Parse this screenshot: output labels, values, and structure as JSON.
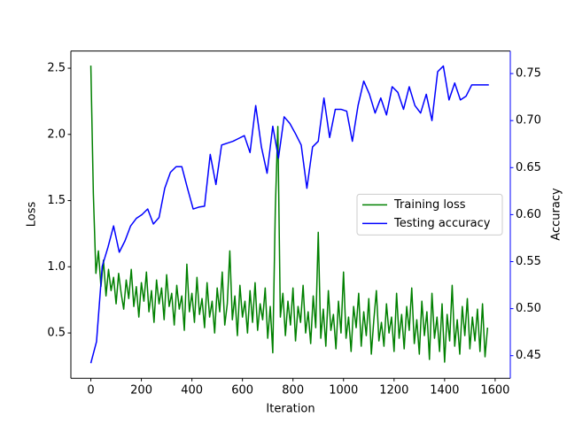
{
  "chart_data": {
    "type": "line",
    "xlabel": "Iteration",
    "ylabel": "Loss",
    "y2label": "Accuracy",
    "xlim": [
      -79,
      1660
    ],
    "xticks": [
      0,
      200,
      400,
      600,
      800,
      1000,
      1200,
      1400,
      1600
    ],
    "ylim": [
      0.158,
      2.63
    ],
    "yticks": [
      0.5,
      {
        "value": 1.0,
        "label": "1.0"
      },
      1.5,
      {
        "value": 2.0,
        "label": "2.0"
      },
      2.5
    ],
    "y2lim": [
      0.426,
      0.774
    ],
    "y2ticks": [
      0.45,
      {
        "value": 0.5,
        "label": "0.50"
      },
      0.55,
      {
        "value": 0.6,
        "label": "0.60"
      },
      0.65,
      {
        "value": 0.7,
        "label": "0.70"
      },
      0.75
    ],
    "y2_color": "#0000ff",
    "legend_loc": "center right",
    "series": [
      {
        "name": "Training loss",
        "color": "#008000",
        "x": [
          0,
          10,
          20,
          30,
          40,
          50,
          60,
          70,
          80,
          90,
          100,
          110,
          120,
          130,
          140,
          150,
          160,
          170,
          180,
          190,
          200,
          210,
          220,
          230,
          240,
          250,
          260,
          270,
          280,
          290,
          300,
          310,
          320,
          330,
          340,
          350,
          360,
          370,
          380,
          390,
          400,
          410,
          420,
          430,
          440,
          450,
          460,
          470,
          480,
          490,
          500,
          510,
          520,
          530,
          540,
          550,
          560,
          570,
          580,
          590,
          600,
          610,
          620,
          630,
          640,
          650,
          660,
          670,
          680,
          690,
          700,
          710,
          720,
          730,
          740,
          750,
          760,
          770,
          780,
          790,
          800,
          810,
          820,
          830,
          840,
          850,
          860,
          870,
          880,
          890,
          900,
          910,
          920,
          930,
          940,
          950,
          960,
          970,
          980,
          990,
          1000,
          1010,
          1020,
          1030,
          1040,
          1050,
          1060,
          1070,
          1080,
          1090,
          1100,
          1110,
          1120,
          1130,
          1140,
          1150,
          1160,
          1170,
          1180,
          1190,
          1200,
          1210,
          1220,
          1230,
          1240,
          1250,
          1260,
          1270,
          1280,
          1290,
          1300,
          1310,
          1320,
          1330,
          1340,
          1350,
          1360,
          1370,
          1380,
          1390,
          1400,
          1410,
          1420,
          1430,
          1440,
          1450,
          1460,
          1470,
          1480,
          1490,
          1500,
          1510,
          1520,
          1530,
          1540,
          1550,
          1560,
          1570
        ],
        "values": [
          2.52,
          1.55,
          0.95,
          1.12,
          0.85,
          1.05,
          0.78,
          0.98,
          0.82,
          0.92,
          0.72,
          0.95,
          0.8,
          0.68,
          0.9,
          0.76,
          0.98,
          0.7,
          0.85,
          0.62,
          0.88,
          0.74,
          0.96,
          0.66,
          0.82,
          0.58,
          0.9,
          0.72,
          0.84,
          0.6,
          0.94,
          0.7,
          0.8,
          0.56,
          0.86,
          0.68,
          0.78,
          0.52,
          1.02,
          0.66,
          0.8,
          0.58,
          0.92,
          0.64,
          0.76,
          0.54,
          0.88,
          0.62,
          0.74,
          0.5,
          0.84,
          0.66,
          0.96,
          0.56,
          0.72,
          1.12,
          0.6,
          0.78,
          0.48,
          0.86,
          0.62,
          0.74,
          0.5,
          0.82,
          0.58,
          0.88,
          0.52,
          0.72,
          0.6,
          0.84,
          0.46,
          0.7,
          0.35,
          1.43,
          2.06,
          0.62,
          0.8,
          0.48,
          0.74,
          0.56,
          0.84,
          0.44,
          0.7,
          0.58,
          0.86,
          0.5,
          0.66,
          0.42,
          0.78,
          0.54,
          1.26,
          0.46,
          0.68,
          0.4,
          0.82,
          0.52,
          0.64,
          0.38,
          0.74,
          0.5,
          0.96,
          0.46,
          0.62,
          0.36,
          0.7,
          0.54,
          0.8,
          0.4,
          0.66,
          0.48,
          0.76,
          0.34,
          0.6,
          0.82,
          0.44,
          0.58,
          0.4,
          0.72,
          0.5,
          0.62,
          0.36,
          0.8,
          0.46,
          0.64,
          0.38,
          0.7,
          0.52,
          0.84,
          0.42,
          0.6,
          0.34,
          0.74,
          0.48,
          0.66,
          0.3,
          0.8,
          0.46,
          0.62,
          0.36,
          0.72,
          0.28,
          0.64,
          0.44,
          0.86,
          0.4,
          0.6,
          0.34,
          0.7,
          0.48,
          0.76,
          0.38,
          0.62,
          0.44,
          0.68,
          0.36,
          0.72,
          0.32,
          0.54
        ]
      },
      {
        "name": "Testing accuracy",
        "color": "#0000ff",
        "axis": "y2",
        "x": [
          0,
          22.5,
          45,
          67.5,
          90,
          112.5,
          135,
          157.5,
          180,
          202.5,
          225,
          247.5,
          270,
          292.5,
          315,
          337.5,
          360,
          382.5,
          405,
          427.5,
          450,
          472.5,
          495,
          517.5,
          540,
          562.5,
          585,
          607.5,
          630,
          652.5,
          675,
          697.5,
          720,
          742.5,
          765,
          787.5,
          810,
          832.5,
          855,
          877.5,
          900,
          922.5,
          945,
          967.5,
          990,
          1012.5,
          1035,
          1057.5,
          1080,
          1102.5,
          1125,
          1147.5,
          1170,
          1192.5,
          1215,
          1237.5,
          1260,
          1282.5,
          1305,
          1327.5,
          1350,
          1372.5,
          1395,
          1417.5,
          1440,
          1462.5,
          1485,
          1507.5,
          1530,
          1552.5,
          1575
        ],
        "values": [
          0.442,
          0.465,
          0.545,
          0.565,
          0.588,
          0.56,
          0.572,
          0.588,
          0.596,
          0.6,
          0.606,
          0.59,
          0.597,
          0.628,
          0.645,
          0.651,
          0.651,
          0.628,
          0.606,
          0.608,
          0.609,
          0.664,
          0.632,
          0.674,
          0.676,
          0.678,
          0.681,
          0.684,
          0.666,
          0.716,
          0.672,
          0.644,
          0.694,
          0.66,
          0.704,
          0.697,
          0.686,
          0.674,
          0.628,
          0.672,
          0.678,
          0.724,
          0.682,
          0.712,
          0.712,
          0.71,
          0.678,
          0.716,
          0.742,
          0.728,
          0.708,
          0.724,
          0.706,
          0.736,
          0.73,
          0.712,
          0.736,
          0.716,
          0.708,
          0.728,
          0.7,
          0.752,
          0.758,
          0.722,
          0.74,
          0.722,
          0.726,
          0.738,
          0.738,
          0.738,
          0.738
        ]
      }
    ]
  }
}
